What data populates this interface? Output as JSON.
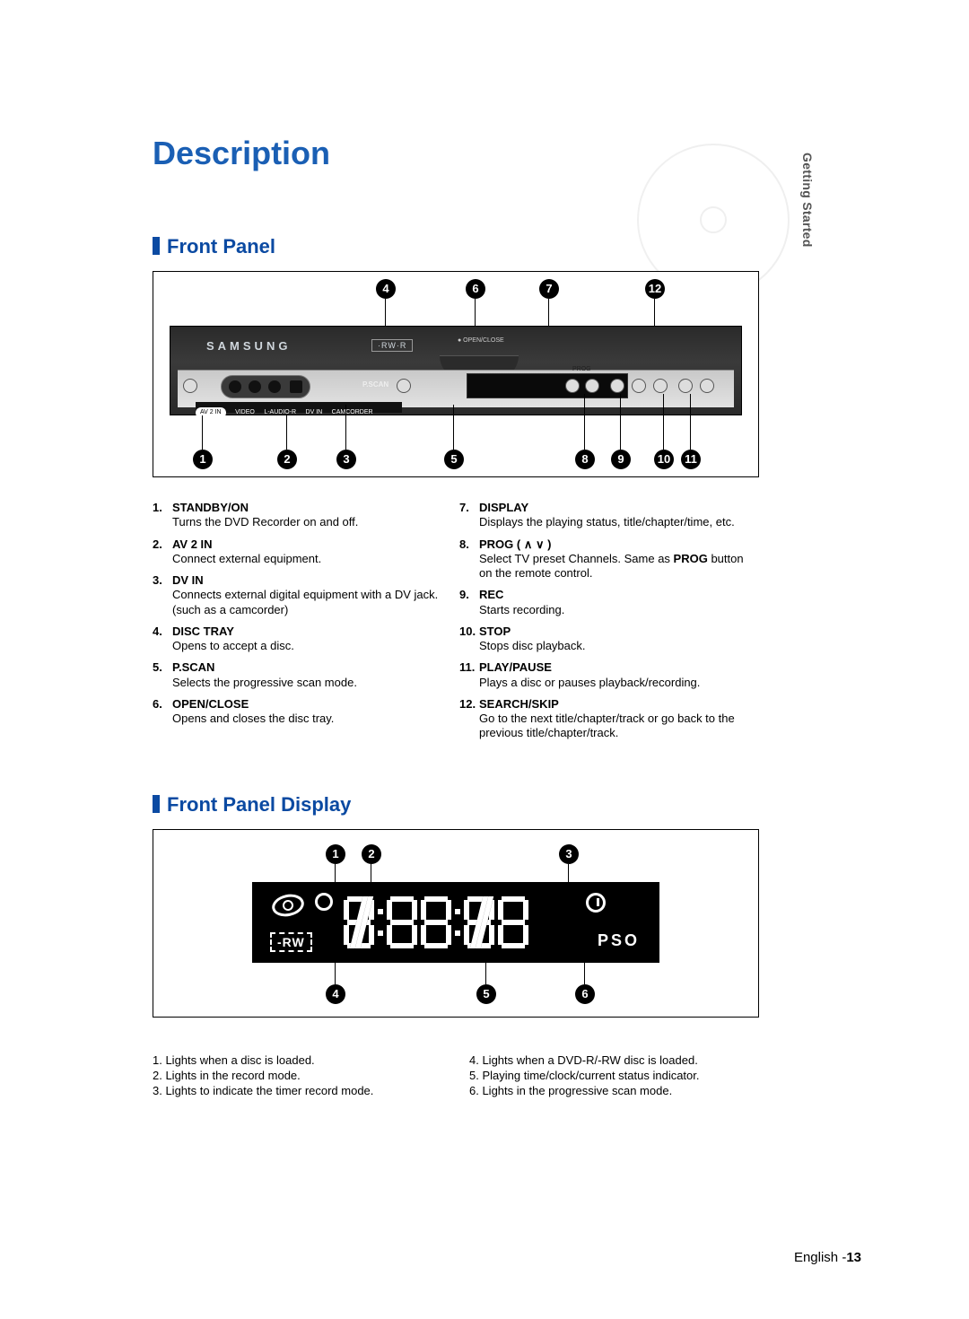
{
  "side_tab": "Getting Started",
  "title": "Description",
  "section1_heading": "Front Panel",
  "section2_heading": "Front Panel Display",
  "brand": "SAMSUNG",
  "badge": "·RW·R",
  "pscan_label": "P.SCAN",
  "avin_strip": {
    "pill": "AV 2 IN",
    "labels": [
      "VIDEO",
      "L-AUDIO-R",
      "DV IN",
      "CAMCORDER"
    ]
  },
  "prog_top": "PROG",
  "control_icons": [
    "∧",
    "∨",
    "REC",
    "■",
    "▶❚❚",
    "❚◀◀",
    "▶▶❚"
  ],
  "front_panel_items_left": [
    {
      "num": "1.",
      "name": "STANDBY/ON",
      "text": "Turns the DVD Recorder on and off."
    },
    {
      "num": "2.",
      "name": "AV 2 IN",
      "text": "Connect external equipment."
    },
    {
      "num": "3.",
      "name": "DV IN",
      "text": "Connects external digital equipment with a DV jack. (such as a camcorder)"
    },
    {
      "num": "4.",
      "name": "DISC TRAY",
      "text": "Opens to accept a disc."
    },
    {
      "num": "5.",
      "name": "P.SCAN",
      "text": "Selects the progressive scan mode."
    },
    {
      "num": "6.",
      "name": "OPEN/CLOSE",
      "text": "Opens and closes the disc tray."
    }
  ],
  "front_panel_items_right": [
    {
      "num": "7.",
      "name": "DISPLAY",
      "text": "Displays the playing status, title/chapter/time, etc."
    },
    {
      "num": "8.",
      "name": "PROG ( ∧ ∨ )",
      "text": "Select TV preset Channels.\nSame as PROG button on the remote control."
    },
    {
      "num": "9.",
      "name": "REC",
      "text": "Starts recording."
    },
    {
      "num": "10.",
      "name": "STOP",
      "text": "Stops disc playback."
    },
    {
      "num": "11.",
      "name": "PLAY/PAUSE",
      "text": "Plays a disc or pauses playback/recording."
    },
    {
      "num": "12.",
      "name": "SEARCH/SKIP",
      "text": "Go to the next title/chapter/track or go back to the previous title/chapter/track."
    }
  ],
  "prog_bold_note": "PROG",
  "lcd": {
    "rw": "-RW",
    "pso": "PSO"
  },
  "display_items_left": [
    "1. Lights when a disc is loaded.",
    "2. Lights in the record mode.",
    "3. Lights to indicate the timer record mode."
  ],
  "display_items_right": [
    "4. Lights when a DVD-R/-RW disc is loaded.",
    "5. Playing time/clock/current status indicator.",
    "6. Lights in the progressive scan mode."
  ],
  "footer_lang": "English -",
  "footer_page": "13",
  "callouts_top": [
    "4",
    "6",
    "7",
    "12"
  ],
  "callouts_bottom": [
    "1",
    "2",
    "3",
    "5",
    "8",
    "9",
    "10",
    "11"
  ],
  "disp_callouts_top": [
    "1",
    "2",
    "3"
  ],
  "disp_callouts_bottom": [
    "4",
    "5",
    "6"
  ]
}
